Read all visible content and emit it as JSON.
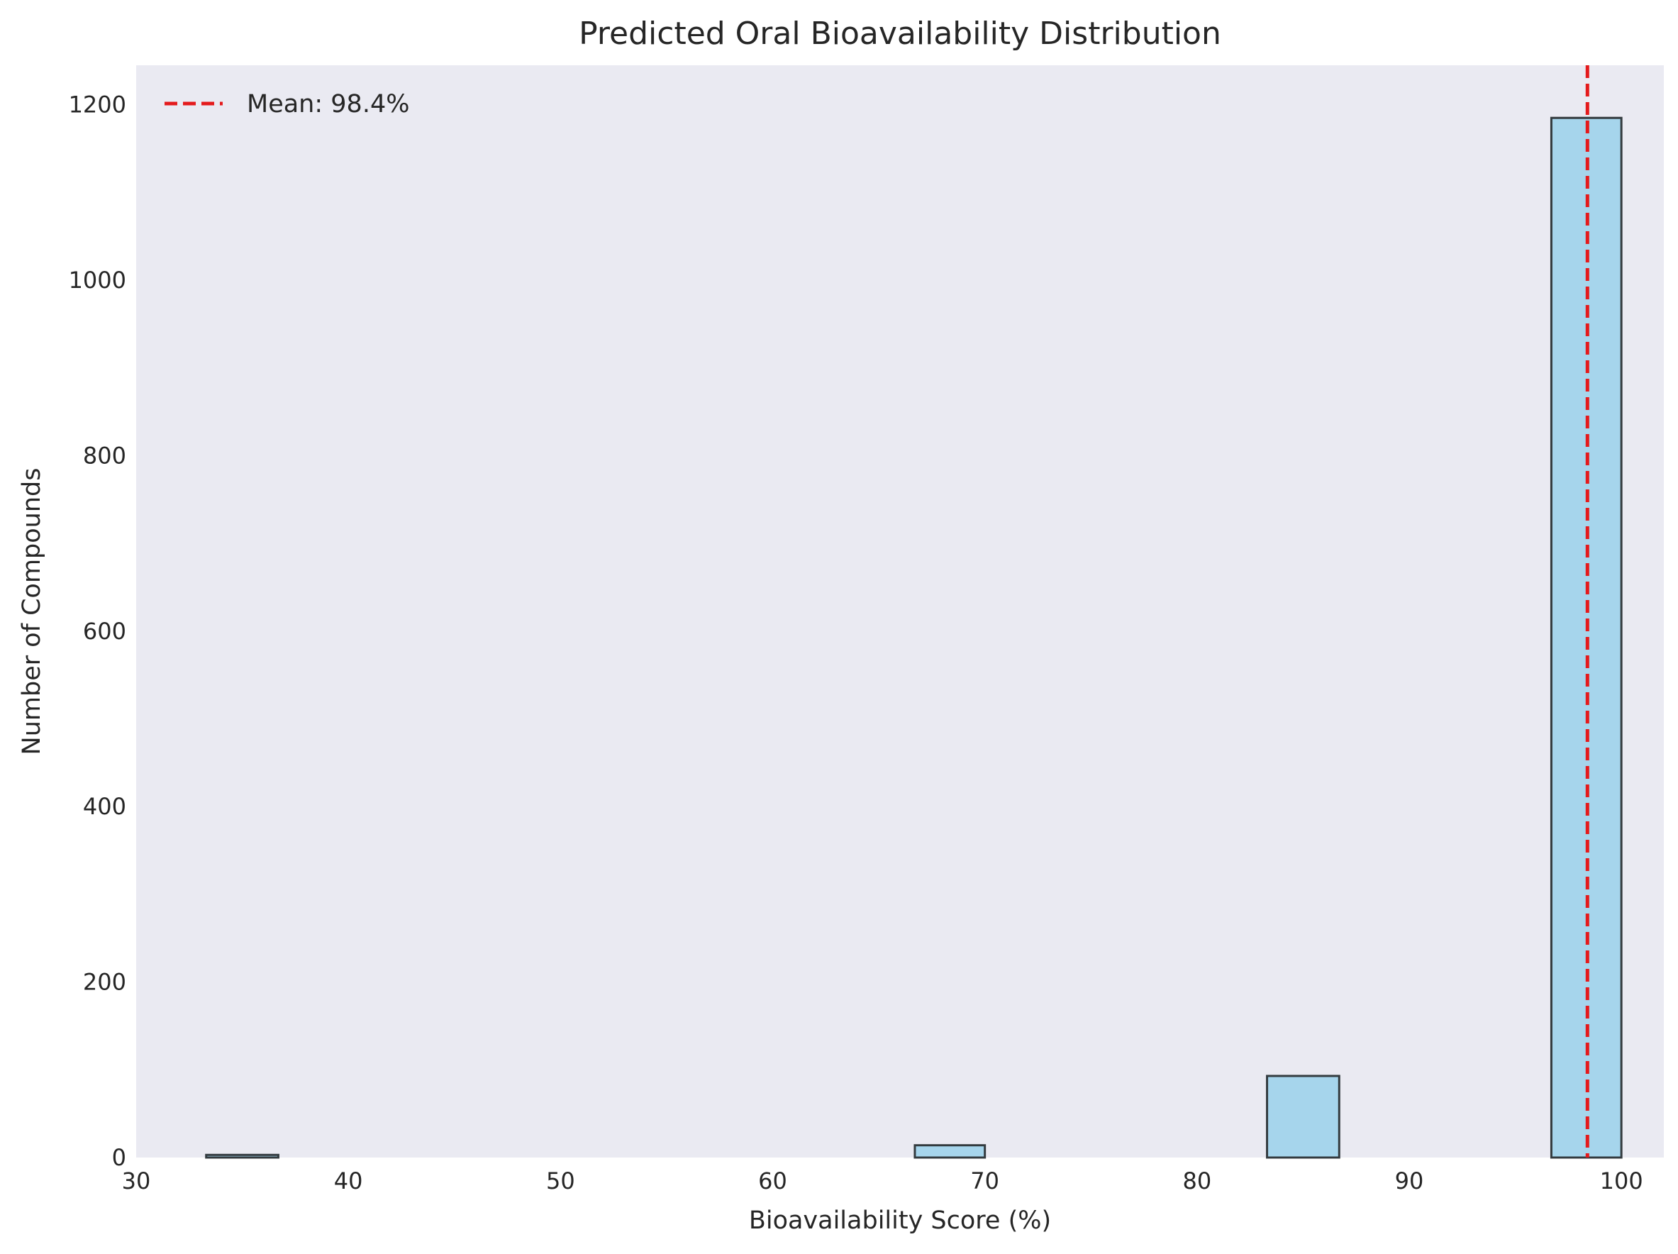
{
  "chart_data": {
    "type": "bar",
    "subtype": "histogram",
    "title": "Predicted Oral Bioavailability Distribution",
    "xlabel": "Bioavailability Score (%)",
    "ylabel": "Number of Compounds",
    "xlim": [
      30,
      102
    ],
    "ylim": [
      0,
      1245
    ],
    "xticks": [
      30,
      40,
      50,
      60,
      70,
      80,
      90,
      100
    ],
    "yticks": [
      0,
      200,
      400,
      600,
      800,
      1000,
      1200
    ],
    "bins": [
      {
        "start": 33.3,
        "end": 36.7,
        "count": 3
      },
      {
        "start": 66.7,
        "end": 70.0,
        "count": 14
      },
      {
        "start": 83.3,
        "end": 86.7,
        "count": 93
      },
      {
        "start": 96.7,
        "end": 100.0,
        "count": 1185
      }
    ],
    "mean_line": {
      "value": 98.4,
      "label": "Mean: 98.4%",
      "color": "#e41a1c",
      "style": "dashed"
    },
    "bar_color": "#a6d5ec",
    "bar_edge_color": "#333b3f",
    "plot_background": "#eaeaf2",
    "grid": false,
    "legend": {
      "position": "top-left",
      "entries": [
        "Mean: 98.4%"
      ]
    }
  }
}
